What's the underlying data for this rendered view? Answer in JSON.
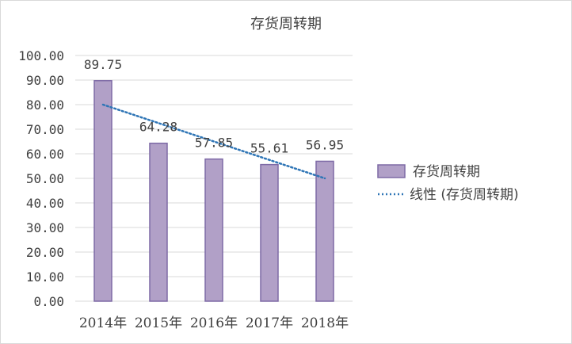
{
  "chart_data": {
    "type": "bar",
    "title": "存货周转期",
    "categories": [
      "2014年",
      "2015年",
      "2016年",
      "2017年",
      "2018年"
    ],
    "series": [
      {
        "name": "存货周转期",
        "values": [
          89.75,
          64.28,
          57.85,
          55.61,
          56.95
        ],
        "color": "#b1a0c7",
        "edge_color": "#7e6aa6"
      }
    ],
    "data_labels": [
      "89.75",
      "64.28",
      "57.85",
      "55.61",
      "56.95"
    ],
    "trendline": {
      "name": "线性 (存货周转期)",
      "type": "linear",
      "start": 80.0,
      "end": 50.0,
      "color": "#2e75b6"
    },
    "ylim": [
      0,
      100
    ],
    "yticks": [
      0,
      10,
      20,
      30,
      40,
      50,
      60,
      70,
      80,
      90,
      100
    ],
    "ytick_labels": [
      "0.00",
      "10.00",
      "20.00",
      "30.00",
      "40.00",
      "50.00",
      "60.00",
      "70.00",
      "80.00",
      "90.00",
      "100.00"
    ],
    "xlabel": "",
    "ylabel": "",
    "grid": true,
    "legend_position": "right"
  }
}
